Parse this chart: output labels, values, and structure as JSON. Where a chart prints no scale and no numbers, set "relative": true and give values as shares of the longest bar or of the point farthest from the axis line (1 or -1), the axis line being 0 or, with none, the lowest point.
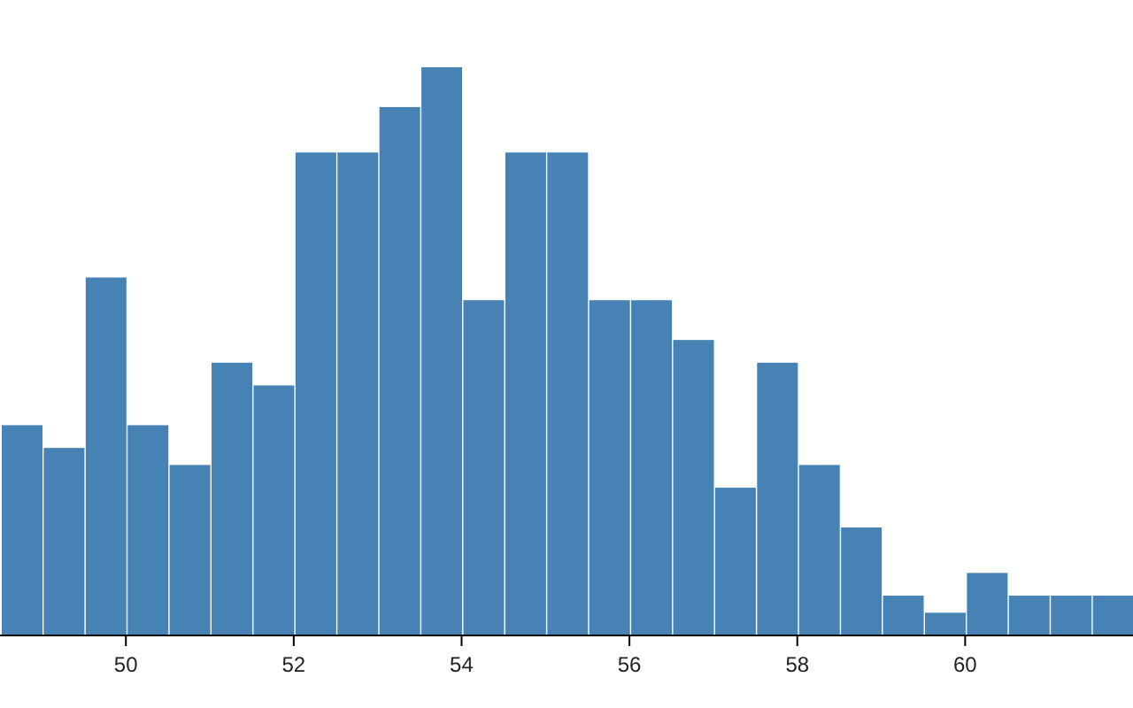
{
  "chart_data": {
    "type": "bar",
    "relative": true,
    "color": "#4682b4",
    "x": [
      48.75,
      49.25,
      49.75,
      50.25,
      50.75,
      51.25,
      51.75,
      52.25,
      52.75,
      53.25,
      53.75,
      54.25,
      54.75,
      55.25,
      55.75,
      56.25,
      56.75,
      57.25,
      57.75,
      58.25,
      58.75,
      59.25,
      59.75,
      60.25,
      60.75,
      61.25,
      61.75
    ],
    "values": [
      0.37,
      0.33,
      0.63,
      0.37,
      0.3,
      0.48,
      0.44,
      0.85,
      0.85,
      0.93,
      1,
      0.59,
      0.85,
      0.85,
      0.59,
      0.59,
      0.52,
      0.26,
      0.48,
      0.3,
      0.19,
      0.07,
      0.04,
      0.11,
      0.07,
      0.07,
      0.07
    ],
    "xlim": [
      48.5,
      62
    ],
    "xticks": [
      50,
      52,
      54,
      56,
      58,
      60
    ]
  }
}
